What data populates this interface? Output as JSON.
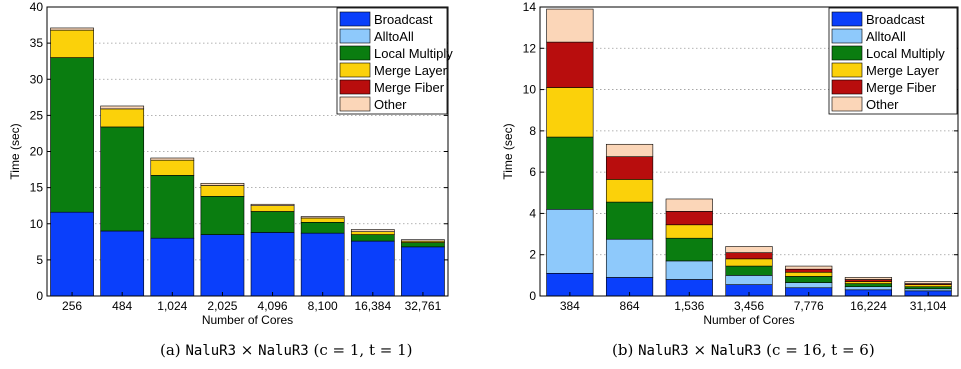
{
  "colors": {
    "Broadcast": "#0a3ffb",
    "AlltoAll": "#8ec9fb",
    "Local Multiply": "#0a7d10",
    "Merge Layer": "#fbd10a",
    "Merge Fiber": "#b80d0d",
    "Other": "#fbd6b8"
  },
  "captions": [
    {
      "prefix": "(a)",
      "a": "NaluR3",
      "times": "×",
      "b": "NaluR3",
      "params": "(c = 1, t = 1)"
    },
    {
      "prefix": "(b)",
      "a": "NaluR3",
      "times": "×",
      "b": "NaluR3",
      "params": "(c = 16, t = 6)"
    }
  ],
  "chart_data": [
    {
      "type": "bar",
      "stacked": true,
      "xlabel": "Number of Cores",
      "ylabel": "Time (sec)",
      "ylim": [
        0,
        40
      ],
      "yticks": [
        0,
        5,
        10,
        15,
        20,
        25,
        30,
        35,
        40
      ],
      "grid": true,
      "legend_position": "top-right",
      "legend": [
        "Broadcast",
        "AlltoAll",
        "Local Multiply",
        "Merge Layer",
        "Merge Fiber",
        "Other"
      ],
      "categories": [
        "256",
        "484",
        "1,024",
        "2,025",
        "4,096",
        "8,100",
        "16,384",
        "32,761"
      ],
      "series": [
        {
          "name": "Broadcast",
          "values": [
            11.6,
            9.0,
            8.0,
            8.5,
            8.8,
            8.7,
            7.6,
            6.8
          ]
        },
        {
          "name": "AlltoAll",
          "values": [
            0,
            0,
            0,
            0,
            0,
            0,
            0,
            0
          ]
        },
        {
          "name": "Local Multiply",
          "values": [
            21.4,
            14.4,
            8.7,
            5.3,
            2.9,
            1.5,
            0.9,
            0.6
          ]
        },
        {
          "name": "Merge Layer",
          "values": [
            3.8,
            2.5,
            2.1,
            1.5,
            0.8,
            0.6,
            0.4,
            0.2
          ]
        },
        {
          "name": "Merge Fiber",
          "values": [
            0,
            0,
            0,
            0,
            0,
            0,
            0,
            0
          ]
        },
        {
          "name": "Other",
          "values": [
            0.3,
            0.4,
            0.3,
            0.3,
            0.2,
            0.2,
            0.3,
            0.2
          ]
        }
      ]
    },
    {
      "type": "bar",
      "stacked": true,
      "xlabel": "Number of Cores",
      "ylabel": "Time (sec)",
      "ylim": [
        0,
        14
      ],
      "yticks": [
        0,
        2,
        4,
        6,
        8,
        10,
        12,
        14
      ],
      "grid": true,
      "legend_position": "top-right",
      "legend": [
        "Broadcast",
        "AlltoAll",
        "Local Multiply",
        "Merge Layer",
        "Merge Fiber",
        "Other"
      ],
      "categories": [
        "384",
        "864",
        "1,536",
        "3,456",
        "7,776",
        "16,224",
        "31,104"
      ],
      "series": [
        {
          "name": "Broadcast",
          "values": [
            1.1,
            0.9,
            0.8,
            0.55,
            0.4,
            0.3,
            0.25
          ]
        },
        {
          "name": "AlltoAll",
          "values": [
            3.1,
            1.85,
            0.9,
            0.45,
            0.25,
            0.15,
            0.1
          ]
        },
        {
          "name": "Local Multiply",
          "values": [
            3.5,
            1.8,
            1.1,
            0.45,
            0.3,
            0.15,
            0.1
          ]
        },
        {
          "name": "Merge Layer",
          "values": [
            2.4,
            1.1,
            0.65,
            0.35,
            0.2,
            0.1,
            0.1
          ]
        },
        {
          "name": "Merge Fiber",
          "values": [
            2.2,
            1.1,
            0.65,
            0.3,
            0.15,
            0.1,
            0.05
          ]
        },
        {
          "name": "Other",
          "values": [
            1.6,
            0.6,
            0.6,
            0.3,
            0.15,
            0.1,
            0.1
          ]
        }
      ]
    }
  ]
}
